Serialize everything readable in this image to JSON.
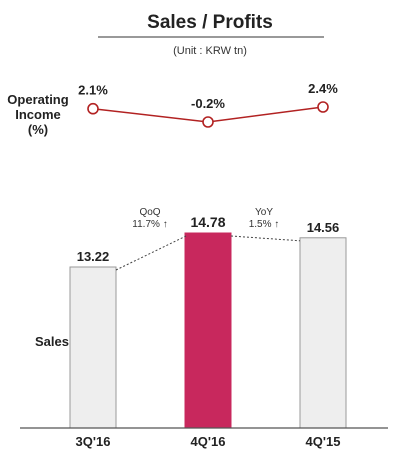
{
  "chart_data": [
    {
      "type": "line",
      "title": "Sales / Profits",
      "subtitle": "(Unit : KRW tn)",
      "ylabel_lines": [
        "Operating",
        "Income",
        "(%)"
      ],
      "categories": [
        "3Q'16",
        "4Q'16",
        "4Q'15"
      ],
      "series": [
        {
          "values": [
            2.1,
            -0.2,
            2.4
          ],
          "labels": [
            "2.1%",
            "-0.2%",
            "2.4%"
          ]
        }
      ],
      "color": "#b22222"
    },
    {
      "type": "bar",
      "ylabel": "Sales",
      "categories": [
        "3Q'16",
        "4Q'16",
        "4Q'15"
      ],
      "series": [
        {
          "values": [
            13.22,
            14.78,
            14.56
          ],
          "labels": [
            "13.22",
            "14.78",
            "14.56"
          ]
        }
      ],
      "highlight_index": 1,
      "colors": {
        "bar": "#eeeeee",
        "highlight": "#c8285d",
        "border": "#999999"
      },
      "annotations": [
        {
          "lines": [
            "QoQ",
            "11.7% ↑"
          ]
        },
        {
          "lines": [
            "YoY",
            "1.5% ↑"
          ]
        }
      ]
    }
  ]
}
